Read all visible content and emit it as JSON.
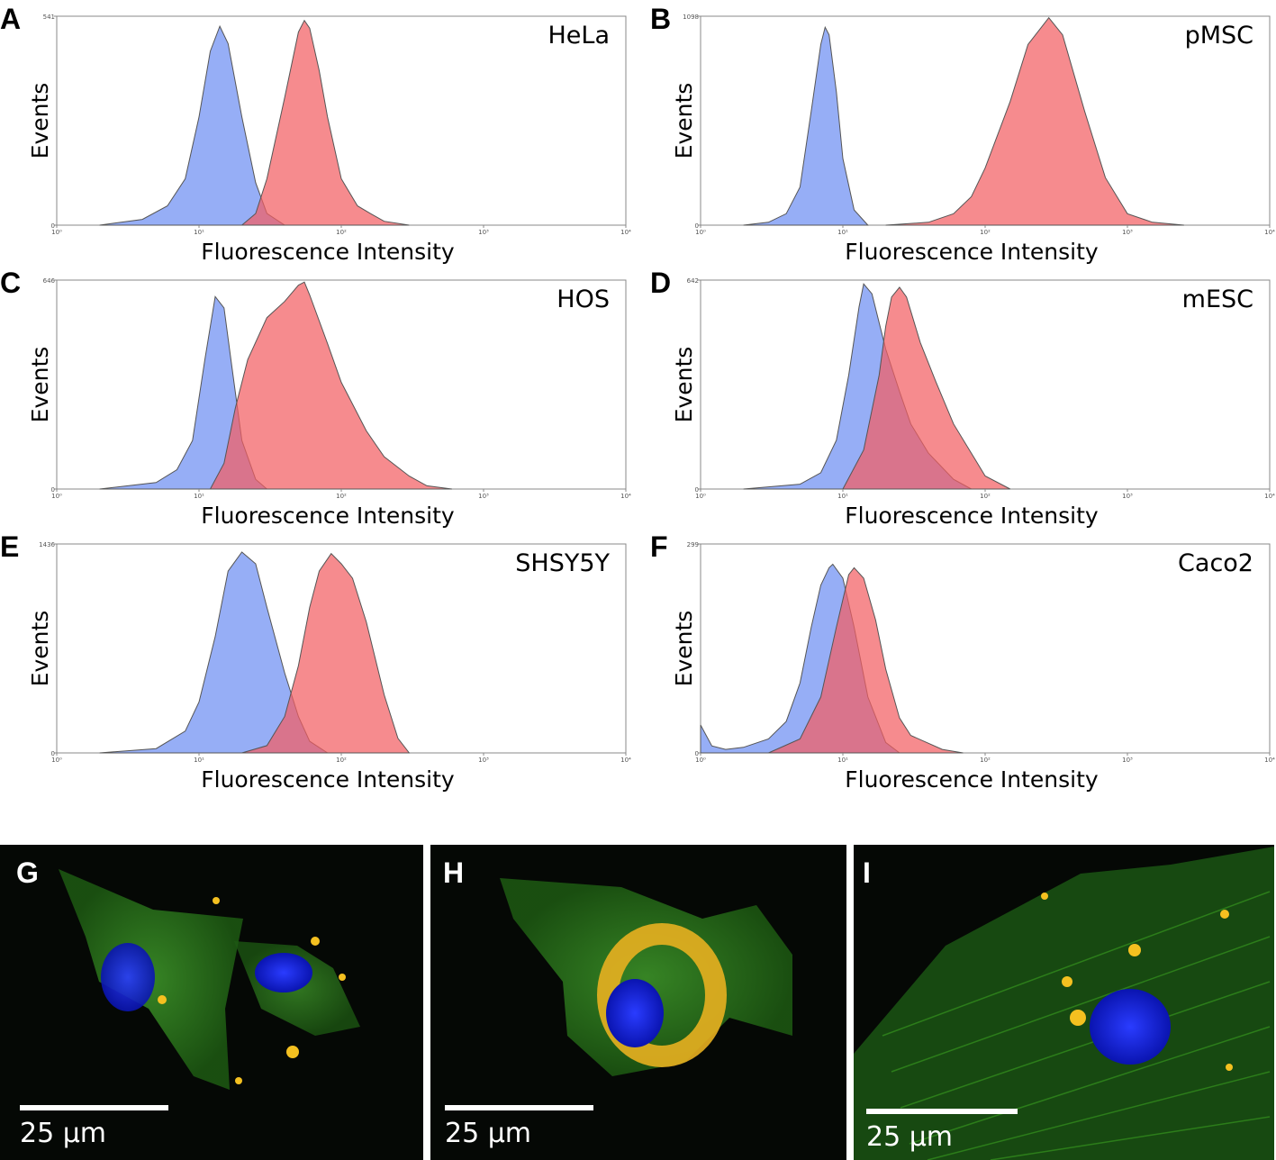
{
  "chart_data": [
    {
      "type": "area",
      "panel": "A",
      "title": "HeLa",
      "xlabel": "Fluorescence Intensity",
      "ylabel": "Events",
      "log_x": true,
      "xlim": [
        1,
        10000
      ],
      "xticks": [
        {
          "value": 1,
          "label": "10⁰"
        },
        {
          "value": 10,
          "label": "10¹"
        },
        {
          "value": 100,
          "label": "10²"
        },
        {
          "value": 1000,
          "label": "10³"
        },
        {
          "value": 10000,
          "label": "10⁴"
        }
      ],
      "ylim": [
        0,
        541
      ],
      "yticks": [
        0,
        541
      ],
      "series": [
        {
          "color": "#6d8ff2",
          "x": [
            2,
            4,
            6,
            8,
            10,
            12,
            14,
            16,
            20,
            25,
            30,
            40
          ],
          "values": [
            0,
            15,
            50,
            120,
            280,
            450,
            515,
            470,
            280,
            110,
            30,
            0
          ]
        },
        {
          "color": "#f25e62",
          "x": [
            20,
            25,
            30,
            40,
            50,
            55,
            60,
            70,
            80,
            100,
            130,
            160,
            200,
            300
          ],
          "values": [
            0,
            30,
            120,
            330,
            500,
            530,
            510,
            400,
            280,
            120,
            50,
            30,
            10,
            0
          ]
        }
      ]
    },
    {
      "type": "area",
      "panel": "B",
      "title": "pMSC",
      "xlabel": "Fluorescence Intensity",
      "ylabel": "Events",
      "log_x": true,
      "xlim": [
        1,
        10000
      ],
      "xticks": [
        {
          "value": 1,
          "label": "10⁰"
        },
        {
          "value": 10,
          "label": "10¹"
        },
        {
          "value": 100,
          "label": "10²"
        },
        {
          "value": 1000,
          "label": "10³"
        },
        {
          "value": 10000,
          "label": "10⁴"
        }
      ],
      "ylim": [
        0,
        1098
      ],
      "yticks": [
        0,
        1098
      ],
      "series": [
        {
          "color": "#6d8ff2",
          "x": [
            2,
            3,
            4,
            5,
            6,
            7,
            7.5,
            8,
            9,
            10,
            12,
            15
          ],
          "values": [
            0,
            15,
            60,
            200,
            600,
            950,
            1040,
            1000,
            700,
            350,
            80,
            0
          ]
        },
        {
          "color": "#f25e62",
          "x": [
            20,
            40,
            60,
            80,
            100,
            150,
            200,
            280,
            350,
            500,
            700,
            1000,
            1500,
            2500
          ],
          "values": [
            0,
            15,
            60,
            150,
            300,
            650,
            950,
            1090,
            1000,
            600,
            250,
            60,
            15,
            0
          ]
        }
      ]
    },
    {
      "type": "area",
      "panel": "C",
      "title": "HOS",
      "xlabel": "Fluorescence Intensity",
      "ylabel": "Events",
      "log_x": true,
      "xlim": [
        1,
        10000
      ],
      "xticks": [
        {
          "value": 1,
          "label": "10⁰"
        },
        {
          "value": 10,
          "label": "10¹"
        },
        {
          "value": 100,
          "label": "10²"
        },
        {
          "value": 1000,
          "label": "10³"
        },
        {
          "value": 10000,
          "label": "10⁴"
        }
      ],
      "ylim": [
        0,
        646
      ],
      "yticks": [
        0,
        646
      ],
      "series": [
        {
          "color": "#6d8ff2",
          "x": [
            2,
            5,
            7,
            9,
            11,
            13,
            15,
            17,
            20,
            25,
            30
          ],
          "values": [
            0,
            20,
            60,
            150,
            400,
            595,
            560,
            380,
            150,
            30,
            0
          ]
        },
        {
          "color": "#f25e62",
          "x": [
            12,
            15,
            18,
            22,
            30,
            40,
            50,
            55,
            60,
            80,
            100,
            150,
            200,
            300,
            400,
            600
          ],
          "values": [
            0,
            80,
            250,
            400,
            530,
            580,
            630,
            640,
            600,
            450,
            330,
            180,
            100,
            40,
            10,
            0
          ]
        }
      ]
    },
    {
      "type": "area",
      "panel": "D",
      "title": "mESC",
      "xlabel": "Fluorescence Intensity",
      "ylabel": "Events",
      "log_x": true,
      "xlim": [
        1,
        10000
      ],
      "xticks": [
        {
          "value": 1,
          "label": "10⁰"
        },
        {
          "value": 10,
          "label": "10¹"
        },
        {
          "value": 100,
          "label": "10²"
        },
        {
          "value": 1000,
          "label": "10³"
        },
        {
          "value": 10000,
          "label": "10⁴"
        }
      ],
      "ylim": [
        0,
        642
      ],
      "yticks": [
        0,
        642
      ],
      "series": [
        {
          "color": "#6d8ff2",
          "x": [
            2,
            5,
            7,
            9,
            11,
            13,
            14,
            16,
            20,
            25,
            30,
            40,
            60,
            80
          ],
          "values": [
            0,
            15,
            50,
            150,
            350,
            560,
            630,
            600,
            430,
            300,
            200,
            110,
            30,
            0
          ]
        },
        {
          "color": "#f25e62",
          "x": [
            10,
            14,
            18,
            20,
            22,
            25,
            28,
            35,
            45,
            60,
            80,
            100,
            150
          ],
          "values": [
            0,
            120,
            350,
            500,
            590,
            620,
            590,
            450,
            330,
            200,
            110,
            40,
            0
          ]
        }
      ]
    },
    {
      "type": "area",
      "panel": "E",
      "title": "SHSY5Y",
      "xlabel": "Fluorescence Intensity",
      "ylabel": "Events",
      "log_x": true,
      "xlim": [
        1,
        10000
      ],
      "xticks": [
        {
          "value": 1,
          "label": "10⁰"
        },
        {
          "value": 10,
          "label": "10¹"
        },
        {
          "value": 100,
          "label": "10²"
        },
        {
          "value": 1000,
          "label": "10³"
        },
        {
          "value": 10000,
          "label": "10⁴"
        }
      ],
      "ylim": [
        0,
        1436
      ],
      "yticks": [
        0,
        1436
      ],
      "series": [
        {
          "color": "#6d8ff2",
          "x": [
            2,
            5,
            8,
            10,
            13,
            16,
            20,
            25,
            30,
            40,
            50,
            60,
            80
          ],
          "values": [
            0,
            30,
            150,
            350,
            800,
            1250,
            1380,
            1300,
            1000,
            550,
            250,
            80,
            0
          ]
        },
        {
          "color": "#f25e62",
          "x": [
            20,
            30,
            40,
            50,
            60,
            70,
            85,
            100,
            120,
            150,
            200,
            250,
            300
          ],
          "values": [
            0,
            50,
            250,
            600,
            1000,
            1250,
            1370,
            1300,
            1200,
            900,
            400,
            100,
            0
          ]
        }
      ]
    },
    {
      "type": "area",
      "panel": "F",
      "title": "Caco2",
      "xlabel": "Fluorescence Intensity",
      "ylabel": "Events",
      "log_x": true,
      "xlim": [
        1,
        10000
      ],
      "xticks": [
        {
          "value": 1,
          "label": "10⁰"
        },
        {
          "value": 10,
          "label": "10¹"
        },
        {
          "value": 100,
          "label": "10²"
        },
        {
          "value": 1000,
          "label": "10³"
        },
        {
          "value": 10000,
          "label": "10⁴"
        }
      ],
      "ylim": [
        0,
        299
      ],
      "yticks": [
        0,
        299
      ],
      "series": [
        {
          "color": "#6d8ff2",
          "x": [
            1,
            1.2,
            1.5,
            2,
            3,
            4,
            5,
            6,
            7,
            8,
            8.5,
            10,
            12,
            15,
            20,
            25
          ],
          "values": [
            40,
            10,
            5,
            8,
            20,
            45,
            100,
            180,
            240,
            265,
            270,
            250,
            180,
            80,
            15,
            0
          ]
        },
        {
          "color": "#f25e62",
          "x": [
            3,
            5,
            7,
            9,
            11,
            12,
            14,
            17,
            20,
            25,
            30,
            50,
            70
          ],
          "values": [
            0,
            20,
            80,
            180,
            255,
            265,
            250,
            190,
            120,
            50,
            25,
            5,
            0
          ]
        }
      ]
    }
  ],
  "images": [
    {
      "panel": "G",
      "scale_bar": "25 µm"
    },
    {
      "panel": "H",
      "scale_bar": "25 µm"
    },
    {
      "panel": "I",
      "scale_bar": "25 µm"
    }
  ]
}
